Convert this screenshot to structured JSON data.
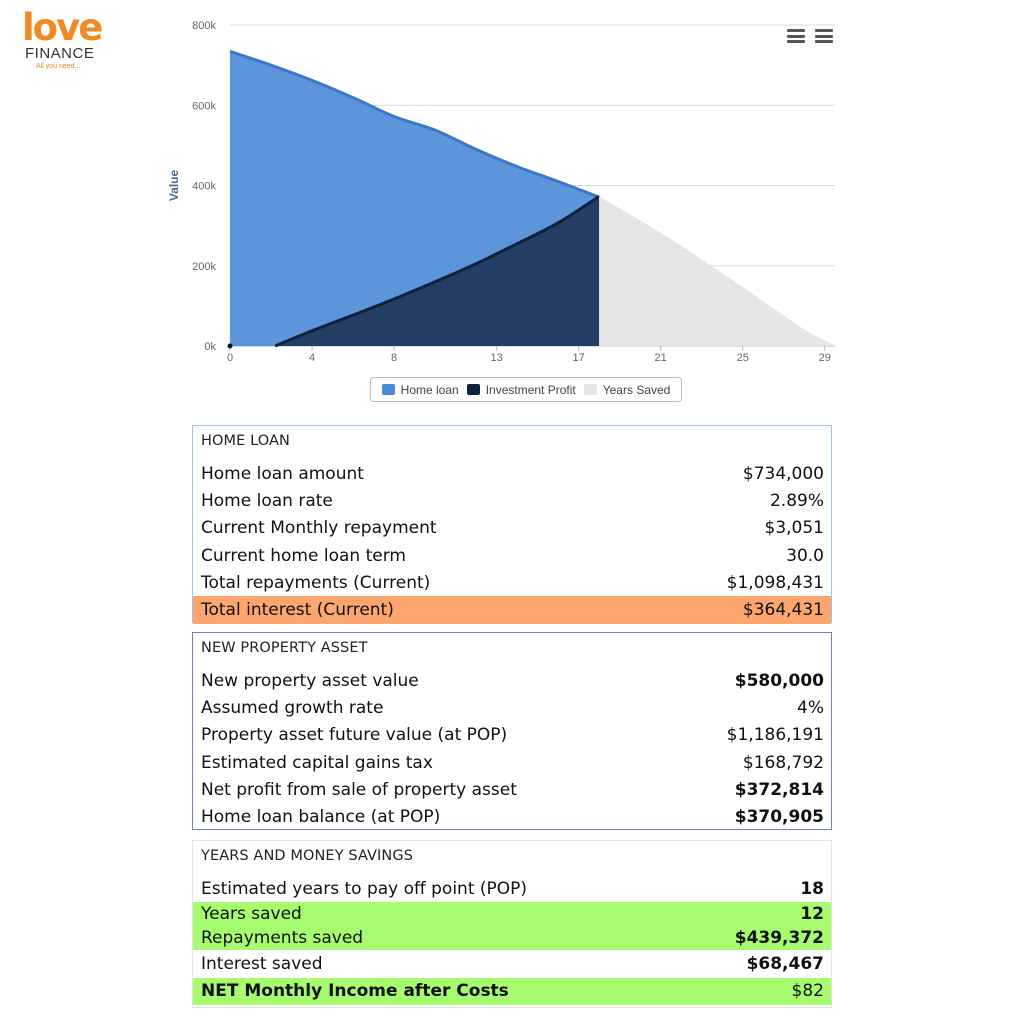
{
  "logo": {
    "word": "love",
    "sub": "FINANCE",
    "tagline": "All you need..."
  },
  "colors": {
    "home_loan": "#4a8ad6",
    "investment_profit": "#243f63",
    "years_saved": "#e6e6e6",
    "highlight_orange": "#fca56e",
    "highlight_green": "#a6fb6e"
  },
  "chart_menu": [
    "menu-icon",
    "menu-icon"
  ],
  "chart_data": {
    "type": "area",
    "ylabel": "Value",
    "xlabel": "",
    "y_ticks": [
      "0k",
      "200k",
      "400k",
      "600k",
      "800k"
    ],
    "x_ticks": [
      "0",
      "4",
      "8",
      "13",
      "17",
      "21",
      "25",
      "29"
    ],
    "ylim": [
      0,
      800000
    ],
    "xlim": [
      0,
      29.5
    ],
    "grid": true,
    "legend_position": "bottom",
    "series": [
      {
        "name": "Home loan",
        "x": [
          0,
          2,
          4,
          6,
          8,
          10,
          12,
          14,
          16,
          18
        ],
        "values": [
          734000,
          700000,
          662000,
          619000,
          572000,
          538000,
          490000,
          447000,
          410000,
          370905
        ]
      },
      {
        "name": "Investment Profit",
        "x": [
          2.2,
          4,
          6,
          8,
          10,
          12,
          14,
          16,
          18
        ],
        "values": [
          0,
          38000,
          77000,
          117000,
          160000,
          205000,
          255000,
          307000,
          372814
        ]
      },
      {
        "name": "Years Saved",
        "x": [
          18,
          20,
          22,
          24,
          26,
          28,
          29.5
        ],
        "values": [
          370905,
          312000,
          248000,
          180000,
          110000,
          40000,
          0
        ]
      }
    ]
  },
  "home_loan": {
    "title": "HOME LOAN",
    "rows": [
      {
        "label": "Home loan amount",
        "value": "$734,000"
      },
      {
        "label": "Home loan rate",
        "value": "2.89%"
      },
      {
        "label": "Current Monthly repayment",
        "value": "$3,051"
      },
      {
        "label": "Current home loan term",
        "value": "30.0"
      },
      {
        "label": "Total repayments (Current)",
        "value": "$1,098,431"
      },
      {
        "label": "Total interest (Current)",
        "value": "$364,431"
      }
    ]
  },
  "property": {
    "title": "NEW PROPERTY ASSET",
    "rows": [
      {
        "label": "New property asset value",
        "value": "$580,000"
      },
      {
        "label": "Assumed growth rate",
        "value": "4%"
      },
      {
        "label": "Property asset future value (at POP)",
        "value": "$1,186,191"
      },
      {
        "label": "Estimated capital gains tax",
        "value": "$168,792"
      },
      {
        "label": "Net profit from sale of property asset",
        "value": "$372,814"
      },
      {
        "label": "Home loan balance (at POP)",
        "value": "$370,905"
      }
    ]
  },
  "savings": {
    "title": "YEARS AND MONEY SAVINGS",
    "rows": [
      {
        "label": "Estimated years to pay off point (POP)",
        "value": "18"
      },
      {
        "label": "Years saved",
        "value": "12"
      },
      {
        "label": "Repayments saved",
        "value": "$439,372"
      },
      {
        "label": "Interest saved",
        "value": "$68,467"
      },
      {
        "label": "NET Monthly Income after Costs",
        "value": "$82"
      }
    ]
  }
}
